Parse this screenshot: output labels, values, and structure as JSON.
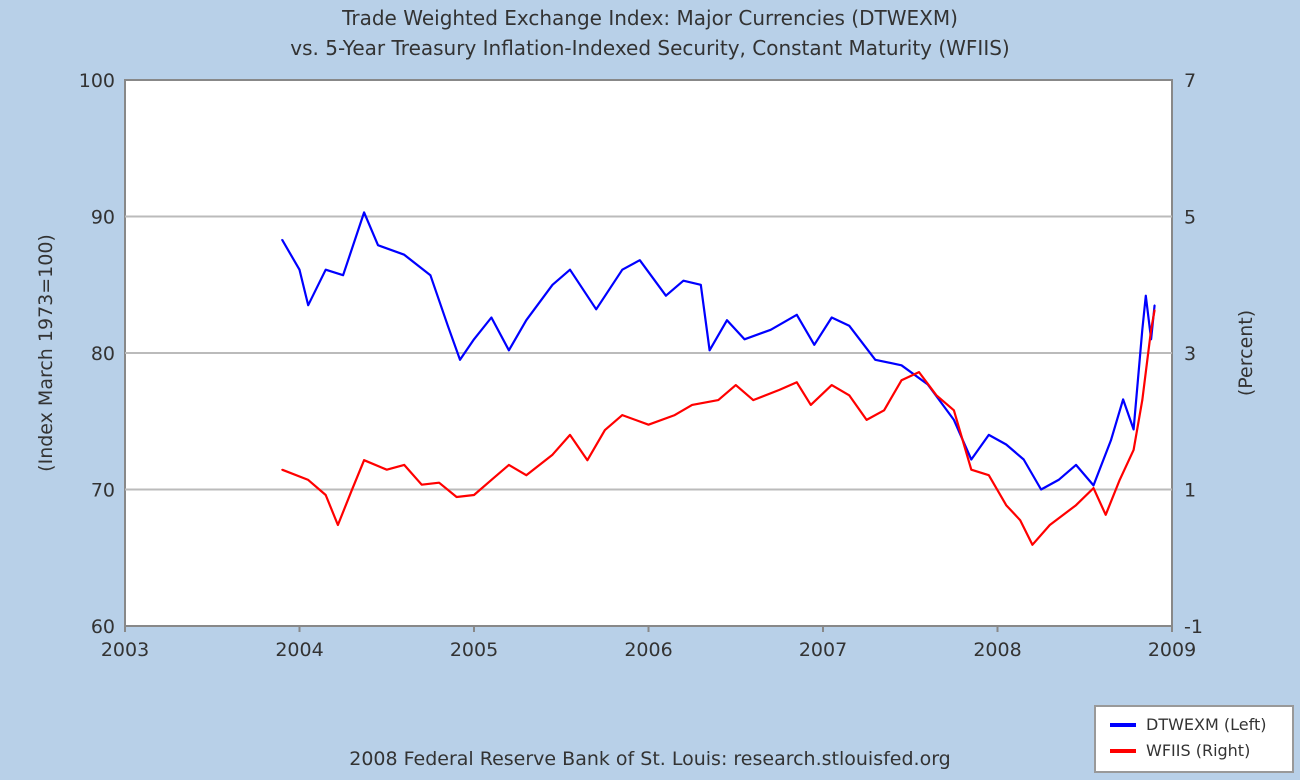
{
  "chart_data": {
    "type": "line",
    "title": "Trade Weighted Exchange Index: Major Currencies (DTWEXM)",
    "subtitle": "vs.  5-Year Treasury Inflation-Indexed Security, Constant Maturity (WFIIS)",
    "ylabel": "(Index March 1973=100)",
    "ylabel_right": "(Percent)",
    "xlim": [
      2003,
      2009
    ],
    "ylim": [
      60,
      100
    ],
    "ylim_right": [
      -1,
      7
    ],
    "x_ticks": [
      "2003",
      "2004",
      "2005",
      "2006",
      "2007",
      "2008",
      "2009"
    ],
    "y_ticks": [
      "60",
      "70",
      "80",
      "90",
      "100"
    ],
    "y_ticks_right": [
      "-1",
      "1",
      "3",
      "5",
      "7"
    ],
    "grid": true,
    "legend_position": "bottom-right",
    "series": [
      {
        "name": "DTWEXM (Left)",
        "axis": "left",
        "color": "#0000ff",
        "x": [
          2003.9,
          2004.0,
          2004.05,
          2004.15,
          2004.25,
          2004.37,
          2004.45,
          2004.6,
          2004.75,
          2004.85,
          2004.92,
          2005.0,
          2005.1,
          2005.2,
          2005.3,
          2005.45,
          2005.55,
          2005.7,
          2005.85,
          2005.95,
          2006.1,
          2006.2,
          2006.3,
          2006.35,
          2006.45,
          2006.55,
          2006.7,
          2006.85,
          2006.95,
          2007.05,
          2007.15,
          2007.3,
          2007.45,
          2007.6,
          2007.75,
          2007.85,
          2007.95,
          2008.05,
          2008.15,
          2008.25,
          2008.35,
          2008.45,
          2008.55,
          2008.65,
          2008.72,
          2008.78,
          2008.83,
          2008.85,
          2008.88,
          2008.9
        ],
        "y": [
          88.3,
          86.1,
          83.5,
          86.1,
          85.7,
          90.3,
          87.9,
          87.2,
          85.7,
          82.0,
          79.5,
          81.0,
          82.6,
          80.2,
          82.4,
          85.0,
          86.1,
          83.2,
          86.1,
          86.8,
          84.2,
          85.3,
          85.0,
          80.2,
          82.4,
          81.0,
          81.7,
          82.8,
          80.6,
          82.6,
          82.0,
          79.5,
          79.1,
          77.7,
          75.1,
          72.2,
          74.0,
          73.3,
          72.2,
          70.0,
          70.7,
          71.8,
          70.3,
          73.6,
          76.6,
          74.4,
          81.7,
          84.2,
          81.0,
          83.5
        ]
      },
      {
        "name": "WFIIS (Right)",
        "axis": "right",
        "color": "#ff0000",
        "x": [
          2003.9,
          2004.05,
          2004.15,
          2004.22,
          2004.3,
          2004.37,
          2004.5,
          2004.6,
          2004.7,
          2004.8,
          2004.9,
          2005.0,
          2005.1,
          2005.2,
          2005.3,
          2005.45,
          2005.55,
          2005.65,
          2005.75,
          2005.85,
          2006.0,
          2006.15,
          2006.25,
          2006.4,
          2006.5,
          2006.6,
          2006.75,
          2006.85,
          2006.93,
          2007.05,
          2007.15,
          2007.25,
          2007.35,
          2007.45,
          2007.55,
          2007.65,
          2007.75,
          2007.85,
          2007.95,
          2008.05,
          2008.13,
          2008.2,
          2008.3,
          2008.45,
          2008.55,
          2008.62,
          2008.7,
          2008.78,
          2008.83,
          2008.88,
          2008.9
        ],
        "y": [
          1.29,
          1.14,
          0.92,
          0.48,
          0.99,
          1.43,
          1.29,
          1.36,
          1.07,
          1.1,
          0.89,
          0.92,
          1.14,
          1.36,
          1.21,
          1.51,
          1.8,
          1.43,
          1.87,
          2.09,
          1.95,
          2.09,
          2.24,
          2.31,
          2.53,
          2.31,
          2.46,
          2.57,
          2.24,
          2.53,
          2.38,
          2.02,
          2.16,
          2.6,
          2.72,
          2.38,
          2.16,
          1.29,
          1.21,
          0.77,
          0.55,
          0.19,
          0.48,
          0.77,
          1.02,
          0.63,
          1.14,
          1.58,
          2.31,
          3.34,
          3.63
        ]
      }
    ],
    "footer": "2008 Federal Reserve Bank of St. Louis: research.stlouisfed.org"
  }
}
